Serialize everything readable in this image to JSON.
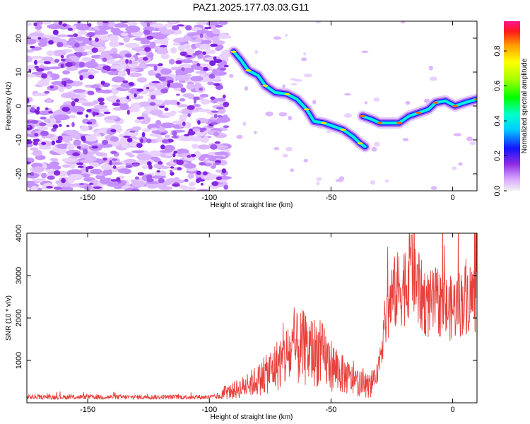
{
  "title": "PAZ1.2025.177.03.03.G11",
  "chart_data": [
    {
      "type": "heatmap",
      "xlabel": "Height of straight line (km)",
      "ylabel": "Frequency (Hz)",
      "xlim": [
        -175,
        10
      ],
      "ylim": [
        -25,
        25
      ],
      "x_ticks": [
        -150,
        -100,
        -50,
        0
      ],
      "y_ticks": [
        -20,
        -10,
        0,
        10,
        20
      ],
      "colorbar": {
        "label": "Normalized spectral amplitude",
        "range": [
          0,
          0.97
        ],
        "ticks": [
          0.0,
          0.2,
          0.4,
          0.6,
          0.8
        ]
      },
      "signal_track": [
        {
          "x": -90,
          "y": 16
        },
        {
          "x": -87,
          "y": 13.5
        },
        {
          "x": -84,
          "y": 10.5
        },
        {
          "x": -80,
          "y": 9
        },
        {
          "x": -77,
          "y": 6
        },
        {
          "x": -73,
          "y": 4
        },
        {
          "x": -68,
          "y": 3.5
        },
        {
          "x": -64,
          "y": 2
        },
        {
          "x": -60,
          "y": -1
        },
        {
          "x": -57,
          "y": -4.5
        },
        {
          "x": -53,
          "y": -5
        },
        {
          "x": -49,
          "y": -6
        },
        {
          "x": -45,
          "y": -7
        },
        {
          "x": -41,
          "y": -9
        },
        {
          "x": -38,
          "y": -11
        },
        {
          "x": -36,
          "y": -12
        }
      ],
      "signal_track_2": [
        {
          "x": -37,
          "y": -3
        },
        {
          "x": -33,
          "y": -4
        },
        {
          "x": -30,
          "y": -5
        },
        {
          "x": -26,
          "y": -5
        },
        {
          "x": -22,
          "y": -5
        },
        {
          "x": -18,
          "y": -3
        },
        {
          "x": -14,
          "y": -2
        },
        {
          "x": -10,
          "y": -1
        },
        {
          "x": -7,
          "y": 1
        },
        {
          "x": -3,
          "y": 1.5
        },
        {
          "x": 1,
          "y": 0
        },
        {
          "x": 5,
          "y": 1
        },
        {
          "x": 10,
          "y": 2
        }
      ]
    },
    {
      "type": "line",
      "xlabel": "Height of straight line (km)",
      "ylabel": "SNR (10 * v/v)",
      "xlim": [
        -175,
        10
      ],
      "ylim": [
        0,
        4000
      ],
      "x_ticks": [
        -150,
        -100,
        -50,
        0
      ],
      "y_ticks": [
        1000,
        2000,
        3000,
        4000
      ],
      "color": "#e8403c",
      "envelope": [
        {
          "x": -175,
          "y": 150
        },
        {
          "x": -150,
          "y": 150
        },
        {
          "x": -125,
          "y": 160
        },
        {
          "x": -100,
          "y": 180
        },
        {
          "x": -92,
          "y": 250
        },
        {
          "x": -85,
          "y": 400
        },
        {
          "x": -78,
          "y": 600
        },
        {
          "x": -72,
          "y": 900
        },
        {
          "x": -66,
          "y": 1200
        },
        {
          "x": -62,
          "y": 1300
        },
        {
          "x": -58,
          "y": 1200
        },
        {
          "x": -55,
          "y": 1200
        },
        {
          "x": -50,
          "y": 900
        },
        {
          "x": -46,
          "y": 700
        },
        {
          "x": -42,
          "y": 550
        },
        {
          "x": -38,
          "y": 450
        },
        {
          "x": -34,
          "y": 380
        },
        {
          "x": -31,
          "y": 700
        },
        {
          "x": -28,
          "y": 1800
        },
        {
          "x": -25,
          "y": 2500
        },
        {
          "x": -22,
          "y": 2700
        },
        {
          "x": -19,
          "y": 2800
        },
        {
          "x": -17,
          "y": 3300
        },
        {
          "x": -14,
          "y": 2600
        },
        {
          "x": -10,
          "y": 2300
        },
        {
          "x": -6,
          "y": 2400
        },
        {
          "x": -2,
          "y": 2200
        },
        {
          "x": 2,
          "y": 2300
        },
        {
          "x": 6,
          "y": 2500
        },
        {
          "x": 10,
          "y": 2500
        }
      ]
    }
  ]
}
